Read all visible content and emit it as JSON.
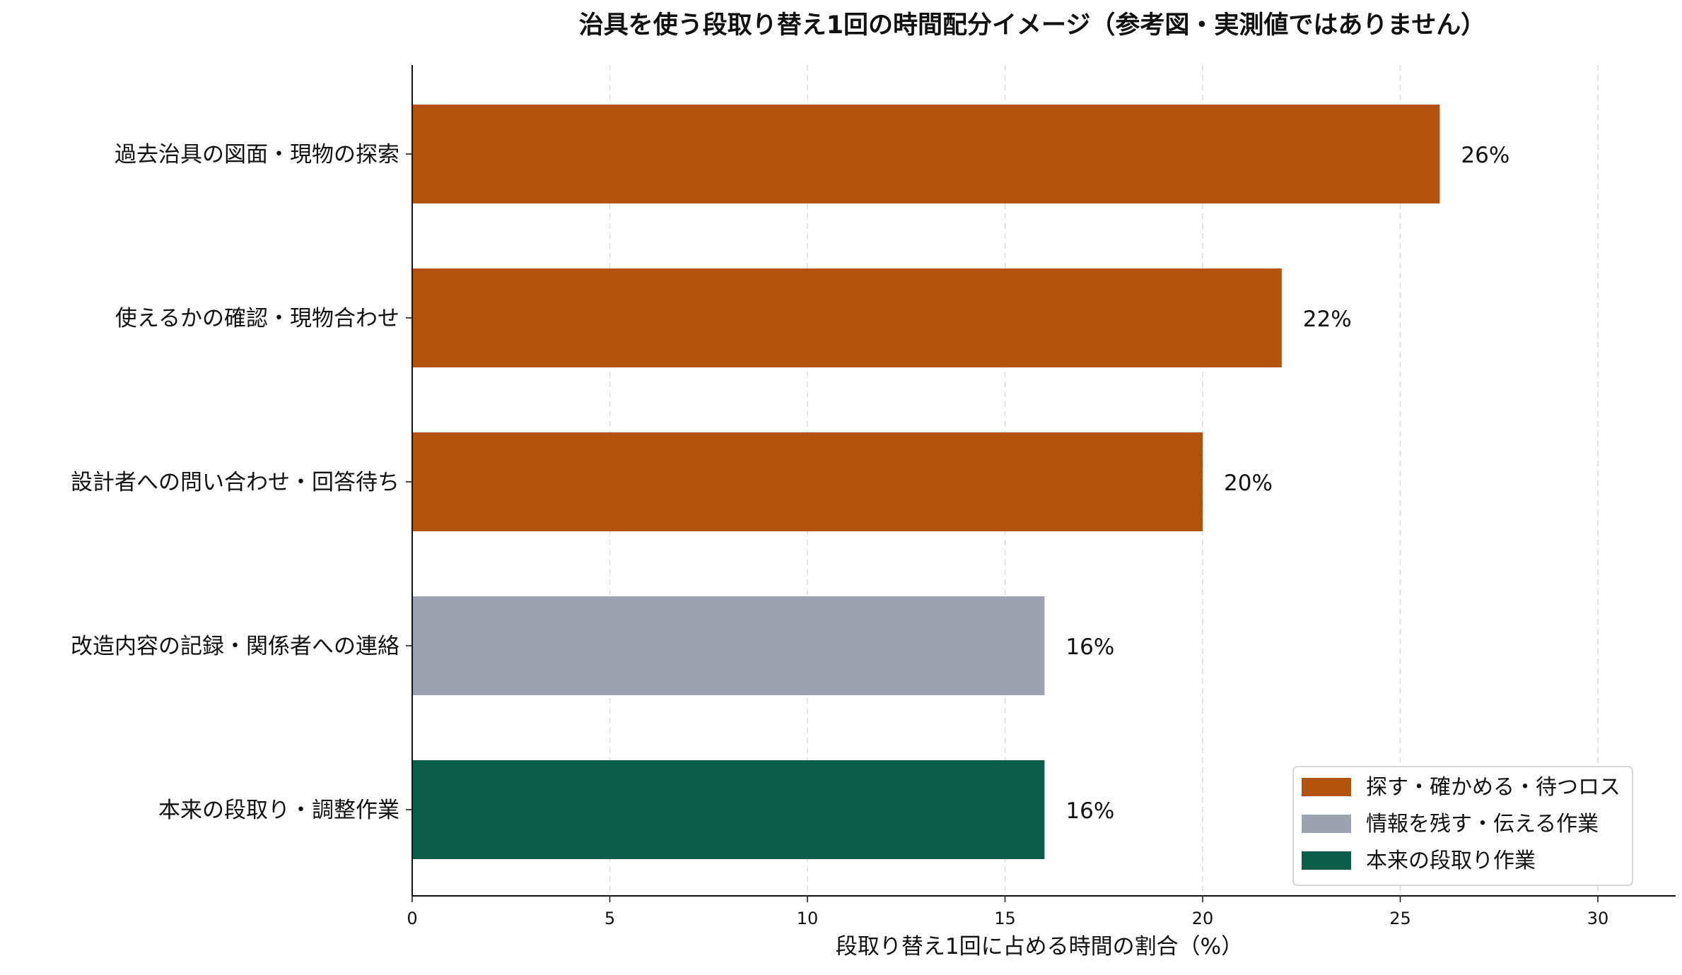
{
  "chart_data": {
    "type": "bar",
    "orientation": "horizontal",
    "title": "治具を使う段取り替え1回の時間配分イメージ（参考図・実測値ではありません）",
    "xlabel": "段取り替え1回に占める時間の割合（%）",
    "ylabel": "",
    "xlim": [
      0,
      32
    ],
    "xticks": [
      0,
      5,
      10,
      15,
      20,
      25,
      30
    ],
    "grid": "x-dashed",
    "legend_position": "bottom-right",
    "categories": [
      "過去治具の図面・現物の探索",
      "使えるかの確認・現物合わせ",
      "設計者への問い合わせ・回答待ち",
      "改造内容の記録・関係者への連絡",
      "本来の段取り・調整作業"
    ],
    "values": [
      26,
      22,
      20,
      16,
      16
    ],
    "value_labels": [
      "26%",
      "22%",
      "20%",
      "16%",
      "16%"
    ],
    "bar_groups": [
      0,
      0,
      0,
      1,
      2
    ],
    "legend": [
      {
        "label": "探す・確かめる・待つロス",
        "color": "#b3530b"
      },
      {
        "label": "情報を残す・伝える作業",
        "color": "#9ca3ae"
      },
      {
        "label": "本来の段取り作業",
        "color": "#0a5e47"
      }
    ]
  }
}
